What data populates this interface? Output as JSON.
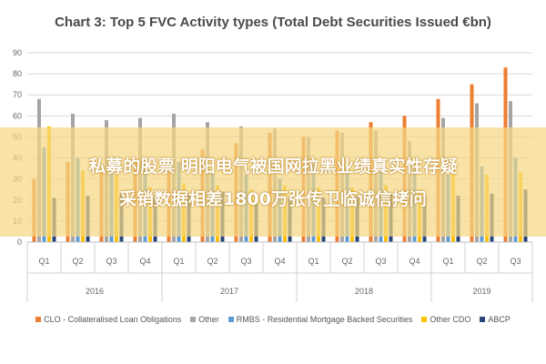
{
  "chart_data": {
    "type": "bar",
    "title": "Chart 3: Top 5 FVC Activity types (Total Debt Securities Issued €bn)",
    "xlabel": "",
    "ylabel": "",
    "ylim": [
      0,
      90
    ],
    "yticks": [
      0,
      10,
      20,
      30,
      40,
      50,
      60,
      70,
      80,
      90
    ],
    "grid": true,
    "legend_position": "bottom",
    "categories": [
      "Q1",
      "Q2",
      "Q3",
      "Q4",
      "Q1",
      "Q2",
      "Q3",
      "Q4",
      "Q1",
      "Q2",
      "Q3",
      "Q4",
      "Q1",
      "Q2",
      "Q3"
    ],
    "groups": [
      {
        "label": "2016",
        "start": 0,
        "count": 4
      },
      {
        "label": "2017",
        "start": 4,
        "count": 4
      },
      {
        "label": "2018",
        "start": 8,
        "count": 4
      },
      {
        "label": "2019",
        "start": 12,
        "count": 3
      }
    ],
    "series": [
      {
        "name": "CLO - Collateralised Loan Obligations",
        "color": "#ED7D31",
        "values": [
          30,
          38,
          33,
          38,
          40,
          44,
          47,
          52,
          50,
          53,
          57,
          60,
          68,
          75,
          83
        ]
      },
      {
        "name": "Other",
        "color": "#A5A5A5",
        "values": [
          68,
          61,
          58,
          59,
          61,
          57,
          55,
          54,
          50,
          52,
          53,
          48,
          59,
          66,
          67
        ]
      },
      {
        "name": "RMBS - Residential Mortgage Backed Securities",
        "color": "#5B9BD5",
        "values": [
          45,
          40,
          37,
          38,
          38,
          33,
          32,
          30,
          37,
          36,
          35,
          36,
          32,
          36,
          40
        ]
      },
      {
        "name": "Other CDO",
        "color": "#FFC000",
        "values": [
          55,
          34,
          33,
          26,
          28,
          27,
          25,
          27,
          26,
          26,
          27,
          25,
          40,
          32,
          33
        ]
      },
      {
        "name": "ABCP",
        "color": "#264478",
        "values": [
          21,
          22,
          23,
          21,
          23,
          24,
          22,
          21,
          21,
          22,
          23,
          22,
          22,
          23,
          25
        ]
      }
    ]
  },
  "overlay": {
    "line1": "私募的股票 明阳电气被国网拉黑业绩真实性存疑",
    "line2": "采销数据相差1800万张传卫临诚信拷问"
  }
}
